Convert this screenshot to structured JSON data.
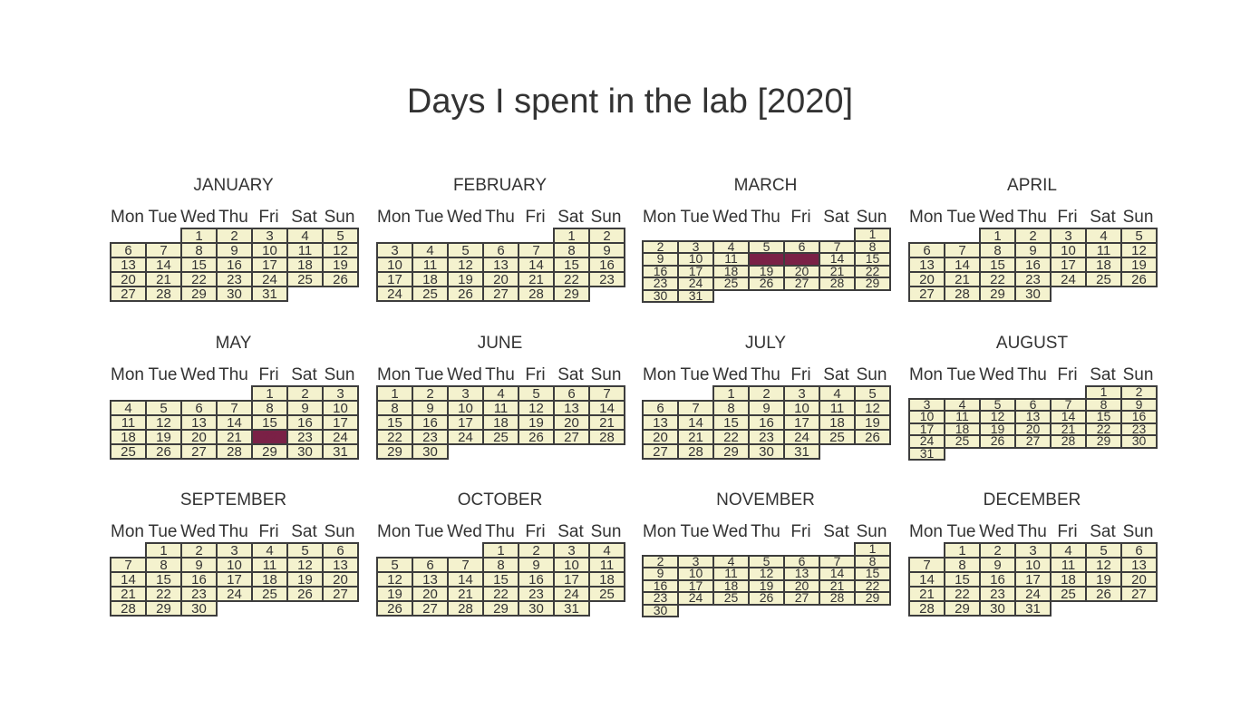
{
  "chart_data": {
    "type": "calendar",
    "title": "Days I spent in the lab [2020]",
    "year": 2020,
    "weekday_labels": [
      "Mon",
      "Tue",
      "Wed",
      "Thu",
      "Fri",
      "Sat",
      "Sun"
    ],
    "months": [
      {
        "name": "JANUARY",
        "first_weekday": 2,
        "days": 31,
        "highlighted": []
      },
      {
        "name": "FEBRUARY",
        "first_weekday": 5,
        "days": 29,
        "highlighted": []
      },
      {
        "name": "MARCH",
        "first_weekday": 6,
        "days": 31,
        "highlighted": [
          12,
          13
        ]
      },
      {
        "name": "APRIL",
        "first_weekday": 2,
        "days": 30,
        "highlighted": []
      },
      {
        "name": "MAY",
        "first_weekday": 4,
        "days": 31,
        "highlighted": [
          22
        ]
      },
      {
        "name": "JUNE",
        "first_weekday": 0,
        "days": 30,
        "highlighted": []
      },
      {
        "name": "JULY",
        "first_weekday": 2,
        "days": 31,
        "highlighted": []
      },
      {
        "name": "AUGUST",
        "first_weekday": 5,
        "days": 31,
        "highlighted": []
      },
      {
        "name": "SEPTEMBER",
        "first_weekday": 1,
        "days": 30,
        "highlighted": []
      },
      {
        "name": "OCTOBER",
        "first_weekday": 3,
        "days": 31,
        "highlighted": []
      },
      {
        "name": "NOVEMBER",
        "first_weekday": 6,
        "days": 30,
        "highlighted": []
      },
      {
        "name": "DECEMBER",
        "first_weekday": 1,
        "days": 31,
        "highlighted": []
      }
    ],
    "colors": {
      "day_fill": "#f4f2ce",
      "highlight_fill": "#7a2146",
      "border": "#3d3d3d"
    }
  }
}
